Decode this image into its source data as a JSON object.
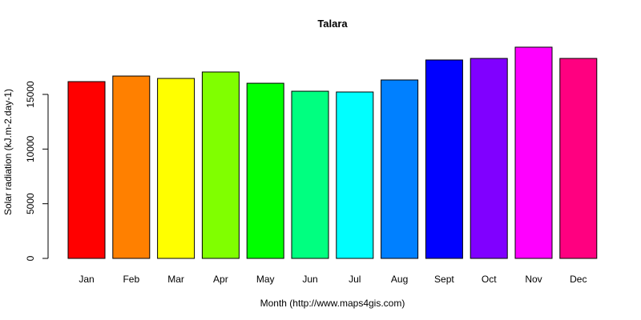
{
  "chart_data": {
    "type": "bar",
    "title": "Talara",
    "xlabel": "Month (http://www.maps4gis.com)",
    "ylabel": "Solar radiation (kJ.m-2.day-1)",
    "categories": [
      "Jan",
      "Feb",
      "Mar",
      "Apr",
      "May",
      "Jun",
      "Jul",
      "Aug",
      "Sept",
      "Oct",
      "Nov",
      "Dec"
    ],
    "values": [
      16170,
      16680,
      16460,
      17050,
      16020,
      15290,
      15220,
      16320,
      18150,
      18290,
      19320,
      18290
    ],
    "colors": [
      "#FF0000",
      "#FF8000",
      "#FFFF00",
      "#80FF00",
      "#00FF00",
      "#00FF80",
      "#00FFFF",
      "#0080FF",
      "#0000FF",
      "#8000FF",
      "#FF00FF",
      "#FF0080"
    ],
    "yticks": [
      0,
      5000,
      10000,
      15000
    ],
    "ylim": [
      0,
      19320
    ],
    "grid": false,
    "legend": "none"
  }
}
